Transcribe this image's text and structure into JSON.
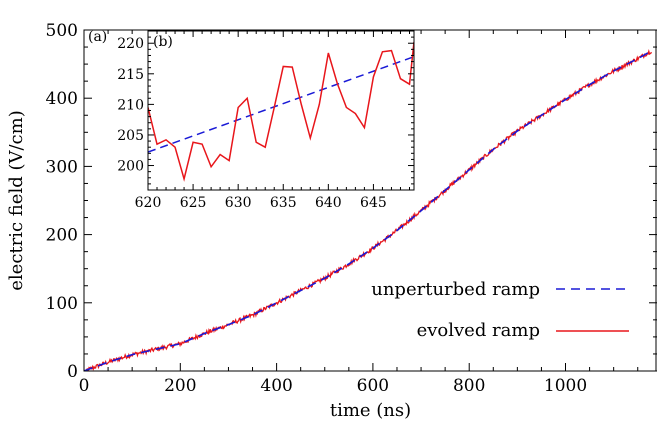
{
  "chart_data": [
    {
      "type": "line",
      "panel": "(a)",
      "xlabel": "time (ns)",
      "ylabel": "electric field (V/cm)",
      "xlim": [
        0,
        1190
      ],
      "ylim": [
        0,
        500
      ],
      "xticks": [
        0,
        200,
        400,
        600,
        800,
        1000
      ],
      "yticks": [
        0,
        100,
        200,
        300,
        400,
        500
      ],
      "x_minor_step": 50,
      "y_minor_step": 25,
      "grid": false,
      "legend_position": "lower-right",
      "series": [
        {
          "name": "unperturbed ramp",
          "style": "dashed",
          "color": "#1a1ad6",
          "points": [
            [
              0,
              0
            ],
            [
              50,
              13
            ],
            [
              100,
              24
            ],
            [
              150,
              32
            ],
            [
              200,
              40
            ],
            [
              250,
              55
            ],
            [
              300,
              68
            ],
            [
              350,
              82
            ],
            [
              400,
              100
            ],
            [
              450,
              118
            ],
            [
              500,
              136
            ],
            [
              550,
              157
            ],
            [
              600,
              180
            ],
            [
              650,
              206
            ],
            [
              700,
              235
            ],
            [
              750,
              265
            ],
            [
              800,
              295
            ],
            [
              850,
              325
            ],
            [
              900,
              352
            ],
            [
              950,
              375
            ],
            [
              1000,
              398
            ],
            [
              1050,
              420
            ],
            [
              1100,
              440
            ],
            [
              1150,
              458
            ],
            [
              1180,
              470
            ]
          ]
        },
        {
          "name": "evolved ramp",
          "style": "solid",
          "color": "#e8161b",
          "noise_amplitude": 3,
          "points": [
            [
              0,
              0
            ],
            [
              50,
              13
            ],
            [
              100,
              24
            ],
            [
              150,
              32
            ],
            [
              200,
              40
            ],
            [
              250,
              55
            ],
            [
              300,
              68
            ],
            [
              350,
              82
            ],
            [
              400,
              100
            ],
            [
              450,
              118
            ],
            [
              500,
              136
            ],
            [
              550,
              157
            ],
            [
              600,
              180
            ],
            [
              650,
              206
            ],
            [
              700,
              235
            ],
            [
              750,
              265
            ],
            [
              800,
              295
            ],
            [
              850,
              325
            ],
            [
              900,
              352
            ],
            [
              950,
              375
            ],
            [
              1000,
              398
            ],
            [
              1050,
              420
            ],
            [
              1100,
              440
            ],
            [
              1150,
              458
            ],
            [
              1180,
              470
            ]
          ]
        }
      ]
    },
    {
      "type": "line",
      "panel": "(b)",
      "xlim": [
        620,
        649.5
      ],
      "ylim": [
        196,
        222
      ],
      "xticks": [
        620,
        625,
        630,
        635,
        640,
        645
      ],
      "yticks": [
        200,
        205,
        210,
        215,
        220
      ],
      "x_minor_step": 1,
      "y_minor_step": 1,
      "series": [
        {
          "name": "unperturbed ramp",
          "style": "dashed",
          "color": "#1a1ad6",
          "x": [
            620,
            649.5
          ],
          "y": [
            202.2,
            217.8
          ]
        },
        {
          "name": "evolved ramp",
          "style": "solid",
          "color": "#e8161b",
          "x": [
            620,
            621,
            622,
            623,
            624,
            625,
            626,
            627,
            628,
            629,
            630,
            631,
            632,
            633,
            634,
            635,
            636,
            637,
            638,
            639,
            640,
            641,
            642,
            643,
            644,
            645,
            646,
            647,
            648,
            649,
            649.5
          ],
          "y": [
            209.5,
            203.5,
            204.2,
            203,
            197.8,
            203.8,
            203.5,
            199.8,
            201.8,
            200.8,
            209.5,
            211,
            203.8,
            203,
            209.5,
            216.2,
            216.1,
            210,
            204.5,
            210,
            218.4,
            213.4,
            209.5,
            208.5,
            206.2,
            214.5,
            218.6,
            218.8,
            214.2,
            213.3,
            220.2
          ]
        }
      ]
    }
  ]
}
